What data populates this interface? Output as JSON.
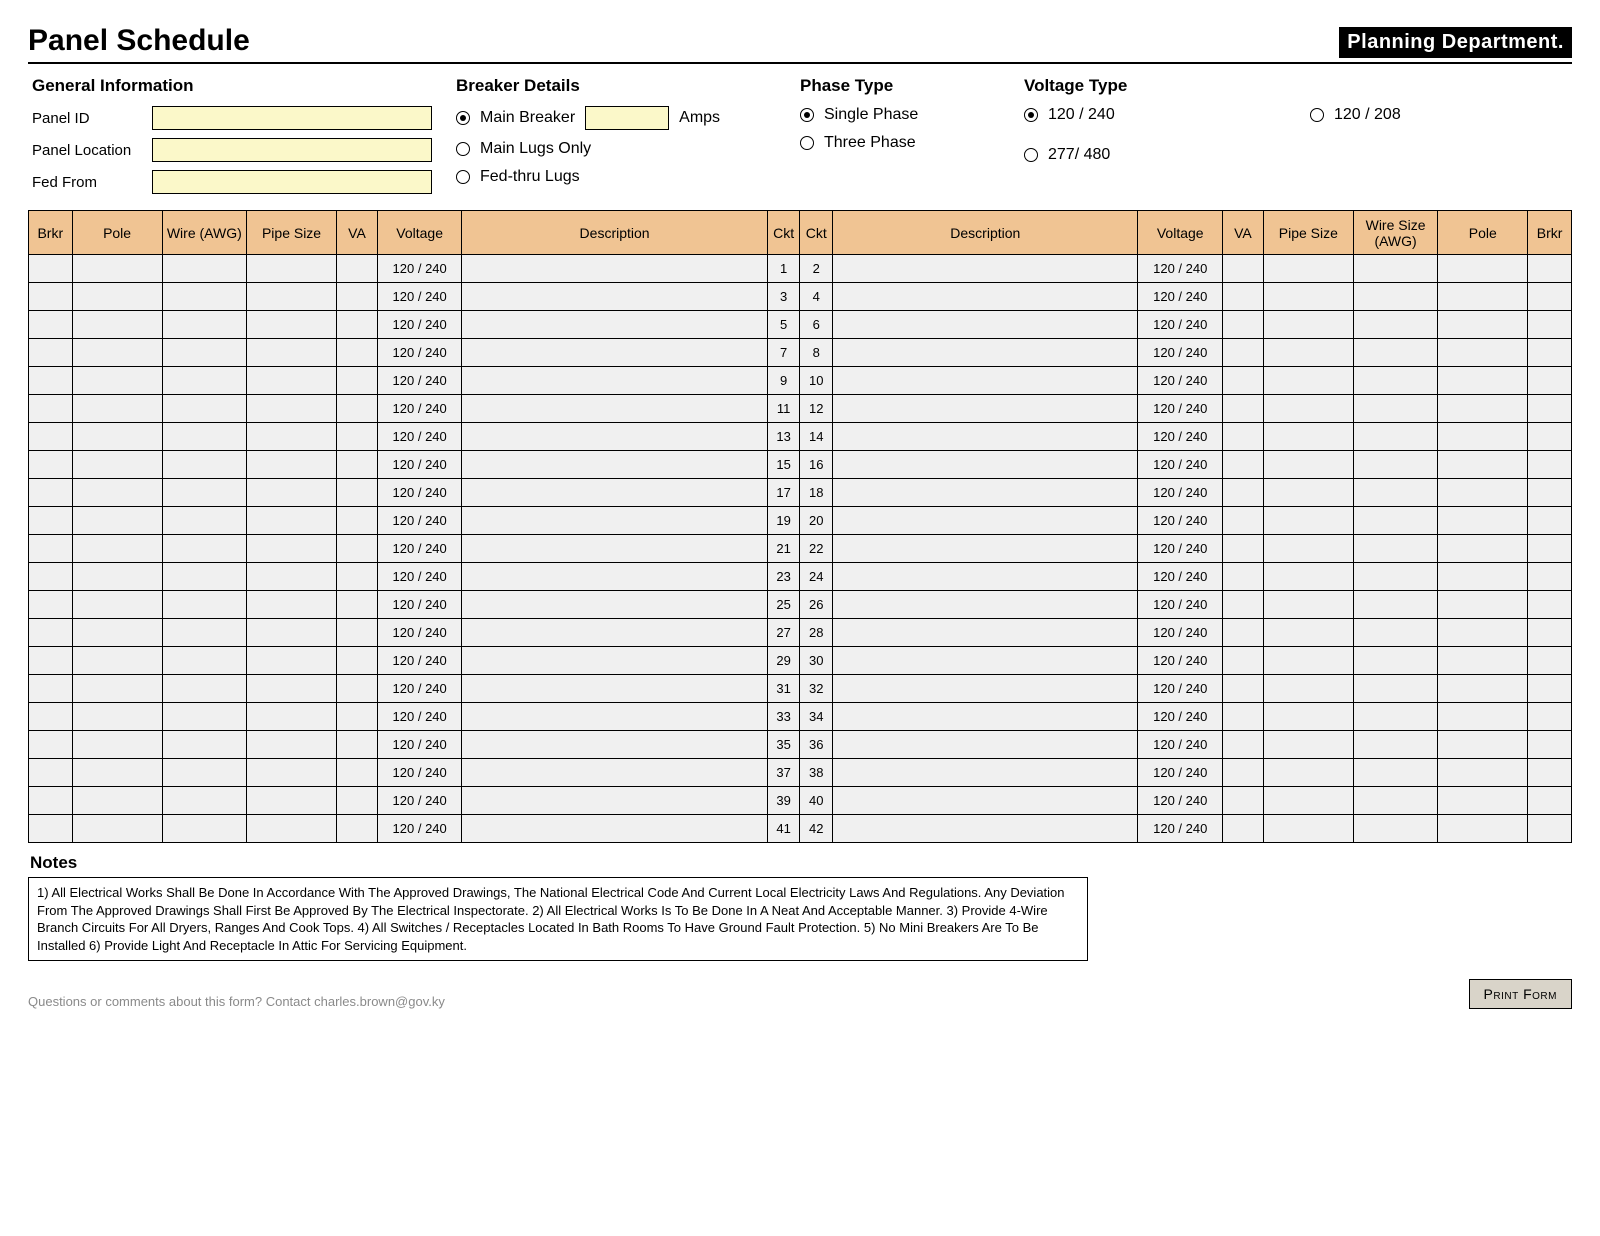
{
  "header": {
    "title": "Panel Schedule",
    "department_badge": "Planning Department."
  },
  "sections": {
    "general_info": {
      "heading": "General Information",
      "panel_id_label": "Panel ID",
      "panel_id_value": "",
      "panel_location_label": "Panel Location",
      "panel_location_value": "",
      "fed_from_label": "Fed From",
      "fed_from_value": ""
    },
    "breaker": {
      "heading": "Breaker Details",
      "main_breaker_label": "Main Breaker",
      "main_breaker_amps_value": "",
      "amps_label": "Amps",
      "main_lugs_label": "Main Lugs Only",
      "fed_thru_label": "Fed-thru Lugs",
      "selected": "main_breaker"
    },
    "phase": {
      "heading": "Phase Type",
      "single_label": "Single Phase",
      "three_label": "Three Phase",
      "selected": "single"
    },
    "voltage": {
      "heading": "Voltage Type",
      "opt1": "120 / 240",
      "opt2": "120 / 208",
      "opt3": "277/ 480",
      "selected": "opt1"
    }
  },
  "table": {
    "columns": {
      "brkr": "Brkr",
      "pole": "Pole",
      "wire": "Wire (AWG)",
      "pipe": "Pipe Size",
      "va": "VA",
      "voltage": "Voltage",
      "description": "Description",
      "ckt": "Ckt",
      "pipe_size_r": "Pipe Size",
      "wire_r": "Wire Size (AWG)"
    },
    "voltage_cell": "120 / 240",
    "row_count": 21,
    "header_bg": "#f0c493",
    "cell_bg": "#f0f0f0",
    "input_bg": "#fbf8c9"
  },
  "notes": {
    "heading": "Notes",
    "body": "1) All Electrical Works Shall Be Done In Accordance With The Approved Drawings, The National Electrical Code And Current Local Electricity Laws And Regulations. Any Deviation From The Approved Drawings Shall First Be Approved By The Electrical Inspectorate. 2) All Electrical Works Is To Be Done In A Neat And Acceptable Manner. 3) Provide 4-Wire Branch Circuits For All Dryers, Ranges And Cook Tops. 4) All Switches / Receptacles Located In Bath Rooms To Have Ground Fault Protection.   5) No Mini Breakers Are To Be Installed  6) Provide Light And Receptacle In Attic For Servicing Equipment."
  },
  "footer": {
    "contact": "Questions or comments about this form? Contact charles.brown@gov.ky",
    "print_button": "Print Form"
  }
}
